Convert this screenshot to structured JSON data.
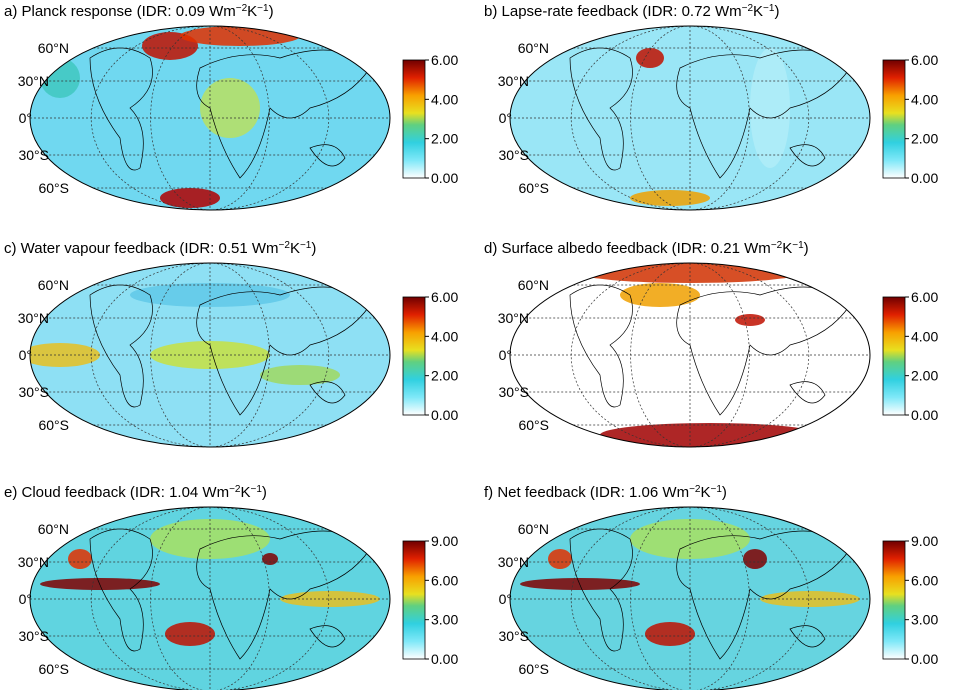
{
  "panels": [
    {
      "title": [
        "a) Planck response (IDR: 0.09 Wm",
        "−2",
        "K",
        "−1",
        ")"
      ],
      "colorbar": {
        "lim": [
          0,
          6
        ],
        "ticks": [
          {
            "value": 0,
            "label": "0.00"
          },
          {
            "value": 2,
            "label": "2.00"
          },
          {
            "value": 4,
            "label": "4.00"
          },
          {
            "value": 6,
            "label": "6.00"
          }
        ]
      },
      "lat_labels": [
        "60°N",
        "30°N",
        "0°",
        "30°S",
        "60°S"
      ]
    },
    {
      "title": [
        "b) Lapse-rate feedback (IDR: 0.72 Wm",
        "−2",
        "K",
        "−1",
        ")"
      ],
      "colorbar": {
        "lim": [
          0,
          6
        ],
        "ticks": [
          {
            "value": 0,
            "label": "0.00"
          },
          {
            "value": 2,
            "label": "2.00"
          },
          {
            "value": 4,
            "label": "4.00"
          },
          {
            "value": 6,
            "label": "6.00"
          }
        ]
      },
      "lat_labels": [
        "60°N",
        "30°N",
        "0°",
        "30°S",
        "60°S"
      ]
    },
    {
      "title": [
        "c) Water vapour feedback (IDR: 0.51 Wm",
        "−2",
        "K",
        "−1",
        ")"
      ],
      "colorbar": {
        "lim": [
          0,
          6
        ],
        "ticks": [
          {
            "value": 0,
            "label": "0.00"
          },
          {
            "value": 2,
            "label": "2.00"
          },
          {
            "value": 4,
            "label": "4.00"
          },
          {
            "value": 6,
            "label": "6.00"
          }
        ]
      },
      "lat_labels": [
        "60°N",
        "30°N",
        "0°",
        "30°S",
        "60°S"
      ]
    },
    {
      "title": [
        "d) Surface albedo feedback (IDR: 0.21 Wm",
        "−2",
        "K",
        "−1",
        ")"
      ],
      "colorbar": {
        "lim": [
          0,
          6
        ],
        "ticks": [
          {
            "value": 0,
            "label": "0.00"
          },
          {
            "value": 2,
            "label": "2.00"
          },
          {
            "value": 4,
            "label": "4.00"
          },
          {
            "value": 6,
            "label": "6.00"
          }
        ]
      },
      "lat_labels": [
        "60°N",
        "30°N",
        "0°",
        "30°S",
        "60°S"
      ]
    },
    {
      "title": [
        "e) Cloud feedback (IDR: 1.04 Wm",
        "−2",
        "K",
        "−1",
        ")"
      ],
      "colorbar": {
        "lim": [
          0,
          9
        ],
        "ticks": [
          {
            "value": 0,
            "label": "0.00"
          },
          {
            "value": 3,
            "label": "3.00"
          },
          {
            "value": 6,
            "label": "6.00"
          },
          {
            "value": 9,
            "label": "9.00"
          }
        ]
      },
      "lat_labels": [
        "60°N",
        "30°N",
        "0°",
        "30°S",
        "60°S"
      ]
    },
    {
      "title": [
        "f) Net feedback (IDR: 1.06 Wm",
        "−2",
        "K",
        "−1",
        ")"
      ],
      "colorbar": {
        "lim": [
          0,
          9
        ],
        "ticks": [
          {
            "value": 0,
            "label": "0.00"
          },
          {
            "value": 3,
            "label": "3.00"
          },
          {
            "value": 6,
            "label": "6.00"
          },
          {
            "value": 9,
            "label": "9.00"
          }
        ]
      },
      "lat_labels": [
        "60°N",
        "30°N",
        "0°",
        "30°S",
        "60°S"
      ]
    }
  ]
}
